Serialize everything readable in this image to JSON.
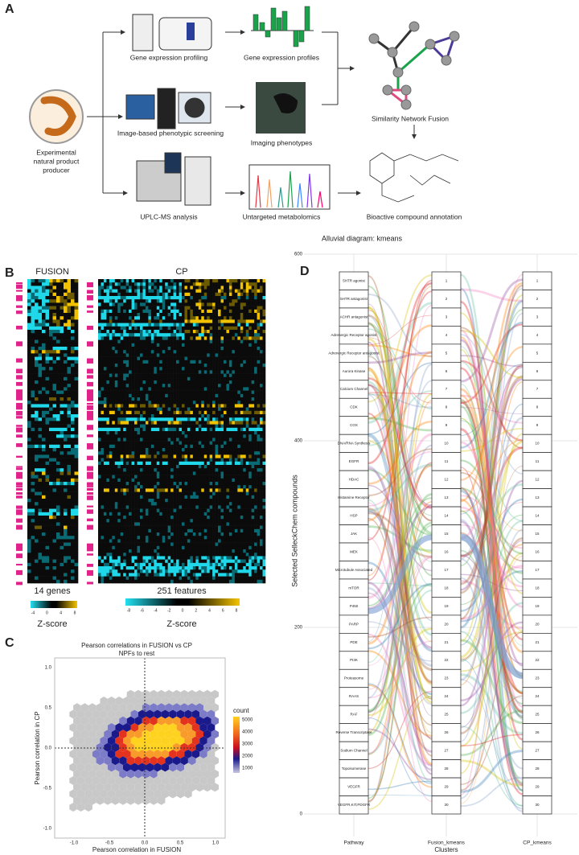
{
  "panel_a": {
    "letter": "A",
    "gene_profiling": "Gene expression profiling",
    "gene_profiles": "Gene expression profiles",
    "producer": [
      "Experimental",
      "natural product",
      "producer"
    ],
    "imaging_screen": "Image-based phenotypic screening",
    "imaging_phenotypes": "Imaging phenotypes",
    "snf": "Similarity Network Fusion",
    "uplc": "UPLC-MS analysis",
    "metabolomics": "Untargeted metabolomics",
    "annotation": "Bioactive compound annotation"
  },
  "panel_b": {
    "letter": "B",
    "fusion_title": "FUSION",
    "cp_title": "CP",
    "fusion_count": "14 genes",
    "cp_count": "251 features",
    "fusion_scale_label": "Z-score",
    "cp_scale_label": "Z-score",
    "fusion_scale_ticks": [
      "-4",
      "0",
      "4",
      "8"
    ],
    "cp_scale_ticks": [
      "-8",
      "-6",
      "-4",
      "-2",
      "0",
      "2",
      "4",
      "6",
      "8"
    ]
  },
  "panel_c": {
    "letter": "C",
    "title": "Pearson correlations in FUSION vs CP",
    "subtitle": "NPFs to rest",
    "xlabel": "Pearson correlation in FUSION",
    "ylabel": "Pearson correlation in CP",
    "xticks": [
      "-1.0",
      "-0.5",
      "0.0",
      "0.5",
      "1.0"
    ],
    "yticks": [
      "-1.0",
      "-0.5",
      "0.0",
      "0.5",
      "1.0"
    ],
    "legend_title": "count",
    "legend_ticks": [
      "5000",
      "4000",
      "3000",
      "2000",
      "1000"
    ]
  },
  "panel_d": {
    "letter": "D",
    "title": "Alluvial diagram: kmeans",
    "ylabel": "Selected SelleckChem compounds",
    "yticks": [
      0,
      200,
      400,
      600
    ],
    "axis_labels": [
      "Pathway",
      "Fusion_kmeans",
      "CP_kmeans"
    ],
    "xlabel": "Clusters",
    "pathways": [
      "5HTR agonist",
      "5HTR antagonist",
      "ACHR antagonist",
      "Adrenergic Receptor agonist",
      "Adrenergic Receptor antagonist",
      "Aurora Kinase",
      "Calcium Channel",
      "CDK",
      "COX",
      "DNA/RNA Synthesis",
      "EGFR",
      "HDAC",
      "Histamine Receptor",
      "HSP",
      "JAK",
      "MEK",
      "Microtubule Associated",
      "mTOR",
      "P450",
      "PARP",
      "PDE",
      "PI3K",
      "Proteasome",
      "RAAS",
      "RAF",
      "Reverse Transcriptase",
      "Sodium Channel",
      "Topoisomerase",
      "VEGFR",
      "VEGFR,KIT,PDGFR"
    ],
    "fusion_clusters": [
      "1",
      "2",
      "3",
      "4",
      "5",
      "6",
      "7",
      "8",
      "9",
      "10",
      "11",
      "12",
      "13",
      "14",
      "15",
      "16",
      "17",
      "18",
      "19",
      "20",
      "21",
      "22",
      "23",
      "24",
      "25",
      "26",
      "27",
      "28",
      "29",
      "30"
    ],
    "cp_clusters": [
      "1",
      "2",
      "3",
      "4",
      "5",
      "6",
      "7",
      "8",
      "9",
      "10",
      "11",
      "12",
      "13",
      "14",
      "15",
      "16",
      "17",
      "18",
      "19",
      "20",
      "21",
      "22",
      "23",
      "24",
      "25",
      "26",
      "27",
      "28",
      "29",
      "30"
    ]
  }
}
